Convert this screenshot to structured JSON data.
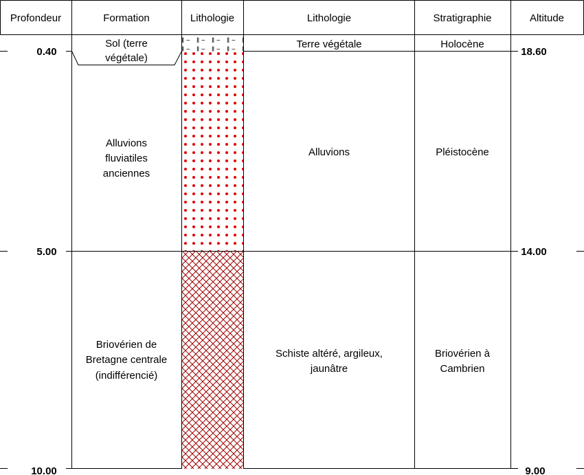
{
  "headers": {
    "profondeur": "Profondeur",
    "formation": "Formation",
    "lithologie_symbol": "Lithologie",
    "lithologie": "Lithologie",
    "stratigraphie": "Stratigraphie",
    "altitude": "Altitude"
  },
  "depth_labels": [
    "0.40",
    "5.00",
    "10.00"
  ],
  "altitude_labels": [
    "18.60",
    "14.00",
    "9.00"
  ],
  "layers": [
    {
      "top": 0.0,
      "bottom": 0.4,
      "formation": [
        "Sol (terre",
        "végétale)"
      ],
      "lithologie": [
        "Terre végétale"
      ],
      "stratigraphie": [
        "Holocène"
      ],
      "pattern": "topsoil"
    },
    {
      "top": 0.4,
      "bottom": 5.0,
      "formation": [
        "Alluvions",
        "fluviatiles",
        "anciennes"
      ],
      "lithologie": [
        "Alluvions"
      ],
      "stratigraphie": [
        "Pléistocène"
      ],
      "pattern": "dots"
    },
    {
      "top": 5.0,
      "bottom": 10.0,
      "formation": [
        "Briovérien de",
        "Bretagne centrale",
        "(indifférencié)"
      ],
      "lithologie": [
        "Schiste altéré, argileux,",
        "jaunâtre"
      ],
      "stratigraphie": [
        "Briovérien à",
        "Cambrien"
      ],
      "pattern": "crosshatch"
    }
  ],
  "colors": {
    "line": "#000000",
    "pattern_red": "#e00000",
    "crosshatch": "#a00000",
    "topsoil": "#b03030"
  }
}
